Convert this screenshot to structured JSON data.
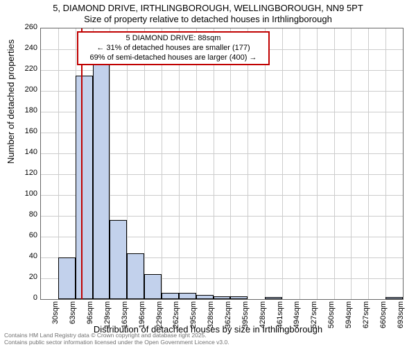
{
  "chart": {
    "type": "histogram",
    "title_main": "5, DIAMOND DRIVE, IRTHLINGBOROUGH, WELLINGBOROUGH, NN9 5PT",
    "title_sub": "Size of property relative to detached houses in Irthlingborough",
    "title_fontsize": 13,
    "ylabel": "Number of detached properties",
    "xlabel": "Distribution of detached houses by size in Irthlingborough",
    "axis_label_fontsize": 13,
    "tick_fontsize": 11,
    "plot_border_color": "#666666",
    "grid_color": "#cccccc",
    "background_color": "#ffffff",
    "bar_fill": "#c2d1ec",
    "bar_stroke": "#000000",
    "marker_color": "#c00000",
    "anno_border_color": "#c00000",
    "ylim_max": 260,
    "yticks": [
      0,
      20,
      40,
      60,
      80,
      100,
      120,
      140,
      160,
      180,
      200,
      220,
      240,
      260
    ],
    "x_categories": [
      "30sqm",
      "63sqm",
      "96sqm",
      "129sqm",
      "163sqm",
      "196sqm",
      "229sqm",
      "262sqm",
      "295sqm",
      "328sqm",
      "362sqm",
      "395sqm",
      "428sqm",
      "461sqm",
      "494sqm",
      "527sqm",
      "560sqm",
      "594sqm",
      "627sqm",
      "660sqm",
      "693sqm"
    ],
    "bars": [
      {
        "x_index": 0,
        "value": 0
      },
      {
        "x_index": 1,
        "value": 40
      },
      {
        "x_index": 2,
        "value": 215
      },
      {
        "x_index": 3,
        "value": 232
      },
      {
        "x_index": 4,
        "value": 76
      },
      {
        "x_index": 5,
        "value": 44
      },
      {
        "x_index": 6,
        "value": 24
      },
      {
        "x_index": 7,
        "value": 6
      },
      {
        "x_index": 8,
        "value": 6
      },
      {
        "x_index": 9,
        "value": 4
      },
      {
        "x_index": 10,
        "value": 3
      },
      {
        "x_index": 11,
        "value": 3
      },
      {
        "x_index": 12,
        "value": 0
      },
      {
        "x_index": 13,
        "value": 2
      },
      {
        "x_index": 14,
        "value": 0
      },
      {
        "x_index": 15,
        "value": 0
      },
      {
        "x_index": 16,
        "value": 0
      },
      {
        "x_index": 17,
        "value": 0
      },
      {
        "x_index": 18,
        "value": 0
      },
      {
        "x_index": 19,
        "value": 0
      },
      {
        "x_index": 20,
        "value": 2
      }
    ],
    "marker_x_index": 2.35,
    "annotation": {
      "line1": "5 DIAMOND DRIVE: 88sqm",
      "line2": "← 31% of detached houses are smaller (177)",
      "line3": "69% of semi-detached houses are larger (400) →"
    },
    "footer_line1": "Contains HM Land Registry data © Crown copyright and database right 2025.",
    "footer_line2": "Contains public sector information licensed under the Open Government Licence v3.0."
  }
}
